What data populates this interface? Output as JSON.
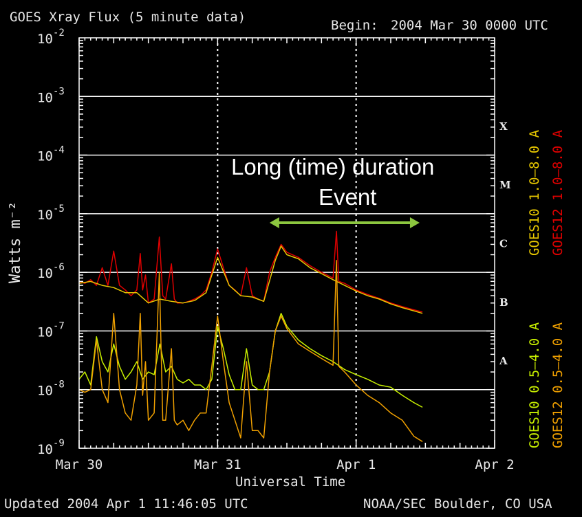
{
  "header": {
    "title": "GOES Xray Flux (5 minute data)",
    "begin_label": "Begin:",
    "begin_value": "2004 Mar 30 0000 UTC"
  },
  "footer": {
    "updated": "Updated 2004 Apr  1 11:46:05 UTC",
    "credit": "NOAA/SEC Boulder, CO USA"
  },
  "annotation": {
    "line1": "Long (time) duration",
    "line2": "Event",
    "arrow_color": "#8cc63f",
    "arrow_start_hours": 33,
    "arrow_end_hours": 59
  },
  "legend": {
    "top_left": "GOES10 1.0–8.0 A",
    "top_right": "GOES12 1.0–8.0 A",
    "bottom_left": "GOES10 0.5–4.0 A",
    "bottom_right": "GOES12 0.5–4.0 A"
  },
  "colors": {
    "goes10_long": "#e8c800",
    "goes12_long": "#e00000",
    "goes10_short": "#c8f000",
    "goes12_short": "#f0a000",
    "grid": "#ffffff"
  },
  "chart_data": {
    "type": "line",
    "title": "GOES Xray Flux (5 minute data)",
    "xlabel": "Universal Time",
    "ylabel": "Watts m⁻²",
    "yscale": "log",
    "ylim": [
      1e-09,
      0.01
    ],
    "x_unit": "hours since 2004 Mar 30 0000 UTC",
    "xlim": [
      0,
      72
    ],
    "x_ticks": [
      {
        "hours": 0,
        "label": "Mar 30"
      },
      {
        "hours": 24,
        "label": "Mar 31"
      },
      {
        "hours": 48,
        "label": "Apr 1"
      },
      {
        "hours": 72,
        "label": "Apr 2"
      }
    ],
    "y_ticks": [
      {
        "value": 1e-09,
        "label_base": "10",
        "label_exp": "-9"
      },
      {
        "value": 1e-08,
        "label_base": "10",
        "label_exp": "-8"
      },
      {
        "value": 1e-07,
        "label_base": "10",
        "label_exp": "-7"
      },
      {
        "value": 1e-06,
        "label_base": "10",
        "label_exp": "-6"
      },
      {
        "value": 1e-05,
        "label_base": "10",
        "label_exp": "-5"
      },
      {
        "value": 0.0001,
        "label_base": "10",
        "label_exp": "-4"
      },
      {
        "value": 0.001,
        "label_base": "10",
        "label_exp": "-3"
      },
      {
        "value": 0.01,
        "label_base": "10",
        "label_exp": "-2"
      }
    ],
    "flare_classes": [
      {
        "label": "A",
        "value_low": 1e-08,
        "value_high": 1e-07
      },
      {
        "label": "B",
        "value_low": 1e-07,
        "value_high": 1e-06
      },
      {
        "label": "C",
        "value_low": 1e-06,
        "value_high": 1e-05
      },
      {
        "label": "M",
        "value_low": 1e-05,
        "value_high": 0.0001
      },
      {
        "label": "X",
        "value_low": 0.0001,
        "value_high": 0.001
      }
    ],
    "grid": true,
    "series": [
      {
        "name": "GOES12 1.0–8.0 A",
        "color": "#e00000",
        "points": [
          [
            0,
            7e-07
          ],
          [
            1,
            6.5e-07
          ],
          [
            2,
            7.5e-07
          ],
          [
            3,
            6e-07
          ],
          [
            4,
            1.2e-06
          ],
          [
            5,
            6e-07
          ],
          [
            6,
            2.3e-06
          ],
          [
            7,
            6e-07
          ],
          [
            8,
            5e-07
          ],
          [
            9,
            4e-07
          ],
          [
            10,
            5e-07
          ],
          [
            10.6,
            2.1e-06
          ],
          [
            11,
            5e-07
          ],
          [
            11.5,
            9e-07
          ],
          [
            12,
            3e-07
          ],
          [
            13,
            3.5e-07
          ],
          [
            13.9,
            4e-06
          ],
          [
            14.5,
            4e-07
          ],
          [
            15,
            3.5e-07
          ],
          [
            16,
            1.4e-06
          ],
          [
            16.5,
            3.5e-07
          ],
          [
            17,
            3e-07
          ],
          [
            18,
            3e-07
          ],
          [
            19,
            3.2e-07
          ],
          [
            20,
            3.5e-07
          ],
          [
            21,
            4e-07
          ],
          [
            22,
            5e-07
          ],
          [
            23,
            1e-06
          ],
          [
            24,
            2.5e-06
          ],
          [
            25,
            1.2e-06
          ],
          [
            26,
            6e-07
          ],
          [
            27,
            5e-07
          ],
          [
            28,
            4e-07
          ],
          [
            29,
            1.2e-06
          ],
          [
            30,
            4e-07
          ],
          [
            31,
            3.5e-07
          ],
          [
            32,
            3.2e-07
          ],
          [
            33,
            1e-06
          ],
          [
            34,
            1.8e-06
          ],
          [
            35,
            3e-06
          ],
          [
            36,
            2.2e-06
          ],
          [
            38,
            1.8e-06
          ],
          [
            40,
            1.3e-06
          ],
          [
            42,
            1e-06
          ],
          [
            44,
            8e-07
          ],
          [
            44.6,
            5e-06
          ],
          [
            45,
            7e-07
          ],
          [
            46,
            6.5e-07
          ],
          [
            48,
            5e-07
          ],
          [
            50,
            4.2e-07
          ],
          [
            52,
            3.6e-07
          ],
          [
            54,
            3e-07
          ],
          [
            56,
            2.6e-07
          ],
          [
            58,
            2.3e-07
          ],
          [
            59.5,
            2.1e-07
          ]
        ]
      },
      {
        "name": "GOES10 1.0–8.0 A",
        "color": "#e8c800",
        "points": [
          [
            0,
            6.5e-07
          ],
          [
            2,
            7e-07
          ],
          [
            4,
            6e-07
          ],
          [
            6,
            5.5e-07
          ],
          [
            8,
            4.5e-07
          ],
          [
            10,
            4.5e-07
          ],
          [
            12,
            3e-07
          ],
          [
            14,
            3.5e-07
          ],
          [
            16,
            3.2e-07
          ],
          [
            18,
            3e-07
          ],
          [
            20,
            3.3e-07
          ],
          [
            22,
            4.5e-07
          ],
          [
            24,
            1.8e-06
          ],
          [
            26,
            6e-07
          ],
          [
            28,
            4e-07
          ],
          [
            30,
            3.8e-07
          ],
          [
            32,
            3.2e-07
          ],
          [
            34,
            1.6e-06
          ],
          [
            35,
            2.8e-06
          ],
          [
            36,
            2e-06
          ],
          [
            38,
            1.7e-06
          ],
          [
            40,
            1.2e-06
          ],
          [
            42,
            9.5e-07
          ],
          [
            44,
            7.5e-07
          ],
          [
            46,
            6e-07
          ],
          [
            48,
            4.8e-07
          ],
          [
            50,
            4e-07
          ],
          [
            52,
            3.5e-07
          ],
          [
            54,
            2.9e-07
          ],
          [
            56,
            2.5e-07
          ],
          [
            58,
            2.2e-07
          ],
          [
            59.5,
            2e-07
          ]
        ]
      },
      {
        "name": "GOES10 0.5–4.0 A",
        "color": "#c8f000",
        "points": [
          [
            0,
            1.5e-08
          ],
          [
            1,
            2e-08
          ],
          [
            2,
            1.2e-08
          ],
          [
            3,
            8e-08
          ],
          [
            4,
            3e-08
          ],
          [
            5,
            2e-08
          ],
          [
            6,
            6e-08
          ],
          [
            7,
            2.5e-08
          ],
          [
            8,
            1.5e-08
          ],
          [
            9,
            2e-08
          ],
          [
            10,
            3e-08
          ],
          [
            11,
            1.5e-08
          ],
          [
            12,
            2e-08
          ],
          [
            13,
            1.8e-08
          ],
          [
            14,
            6e-08
          ],
          [
            15,
            2e-08
          ],
          [
            16,
            2.5e-08
          ],
          [
            17,
            1.5e-08
          ],
          [
            18,
            1.3e-08
          ],
          [
            19,
            1.5e-08
          ],
          [
            20,
            1.2e-08
          ],
          [
            21,
            1.2e-08
          ],
          [
            22,
            1e-08
          ],
          [
            23,
            1.5e-08
          ],
          [
            24,
            1.2e-07
          ],
          [
            25,
            5e-08
          ],
          [
            26,
            1.8e-08
          ],
          [
            27,
            1e-08
          ],
          [
            28,
            1e-08
          ],
          [
            29,
            5e-08
          ],
          [
            30,
            1.2e-08
          ],
          [
            31,
            1e-08
          ],
          [
            32,
            1e-08
          ],
          [
            33,
            2e-08
          ],
          [
            34,
            1e-07
          ],
          [
            35,
            2e-07
          ],
          [
            36,
            1.2e-07
          ],
          [
            38,
            7e-08
          ],
          [
            40,
            5e-08
          ],
          [
            42,
            3.8e-08
          ],
          [
            44,
            3e-08
          ],
          [
            46,
            2.2e-08
          ],
          [
            48,
            1.8e-08
          ],
          [
            50,
            1.5e-08
          ],
          [
            52,
            1.2e-08
          ],
          [
            54,
            1.1e-08
          ],
          [
            56,
            8e-09
          ],
          [
            58,
            6e-09
          ],
          [
            59.5,
            5e-09
          ]
        ]
      },
      {
        "name": "GOES12 0.5–4.0 A",
        "color": "#f0a000",
        "points": [
          [
            0,
            1e-08
          ],
          [
            1,
            9e-09
          ],
          [
            2,
            1e-08
          ],
          [
            3,
            7e-08
          ],
          [
            4,
            1e-08
          ],
          [
            5,
            6e-09
          ],
          [
            6,
            2e-07
          ],
          [
            7,
            1e-08
          ],
          [
            8,
            4e-09
          ],
          [
            9,
            3e-09
          ],
          [
            10,
            1.2e-08
          ],
          [
            10.6,
            2e-07
          ],
          [
            11,
            8e-09
          ],
          [
            11.5,
            3e-08
          ],
          [
            12,
            3e-09
          ],
          [
            13,
            4e-09
          ],
          [
            13.9,
            1e-06
          ],
          [
            14.5,
            3e-09
          ],
          [
            15,
            3e-09
          ],
          [
            16,
            5e-08
          ],
          [
            16.5,
            3e-09
          ],
          [
            17,
            2.5e-09
          ],
          [
            18,
            3e-09
          ],
          [
            19,
            2e-09
          ],
          [
            20,
            3e-09
          ],
          [
            21,
            4e-09
          ],
          [
            22,
            4e-09
          ],
          [
            23,
            2.5e-08
          ],
          [
            24,
            1.8e-07
          ],
          [
            25,
            3e-08
          ],
          [
            26,
            6e-09
          ],
          [
            27,
            3e-09
          ],
          [
            28,
            1.5e-09
          ],
          [
            29,
            3e-08
          ],
          [
            30,
            2e-09
          ],
          [
            31,
            2e-09
          ],
          [
            32,
            1.5e-09
          ],
          [
            33,
            2e-08
          ],
          [
            34,
            1e-07
          ],
          [
            35,
            1.8e-07
          ],
          [
            36,
            1.1e-07
          ],
          [
            38,
            6e-08
          ],
          [
            40,
            4.5e-08
          ],
          [
            42,
            3.4e-08
          ],
          [
            44,
            2.6e-08
          ],
          [
            44.6,
            1.6e-06
          ],
          [
            45,
            2.5e-08
          ],
          [
            46,
            2e-08
          ],
          [
            48,
            1.2e-08
          ],
          [
            50,
            8e-09
          ],
          [
            52,
            6e-09
          ],
          [
            54,
            4e-09
          ],
          [
            56,
            3e-09
          ],
          [
            58,
            1.6e-09
          ],
          [
            59.5,
            1.3e-09
          ]
        ]
      }
    ]
  }
}
